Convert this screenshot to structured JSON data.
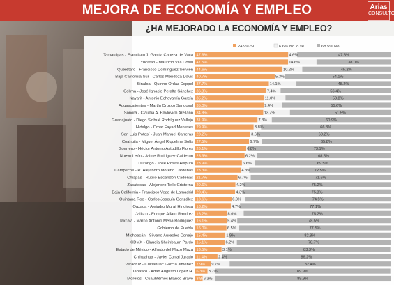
{
  "header": {
    "title": "MEJORA DE ECONOMÍA Y EMPLEO",
    "brand": "Arias",
    "brand_sub": "CONSULTORES"
  },
  "colors": {
    "header_bg": "#c73a2f",
    "yes": "#f0a15e",
    "unsure": "#f1f1f1",
    "no": "#b3b3b3"
  },
  "chart_data": {
    "type": "stacked-bar-horizontal",
    "title": "¿HA MEJORADO LA ECONOMÍA Y EMPLEO?",
    "legend": [
      "24.9% Sí",
      "6.6% No lo sé",
      "68.5% No"
    ],
    "legend_position": "top",
    "xlim": [
      0,
      100
    ],
    "grid": false,
    "series_names": [
      "Sí",
      "No lo sé",
      "No"
    ],
    "rows": [
      {
        "label": "Tamaulipas - Francisco J. García Cabeza de Vaca",
        "values": [
          47.6,
          4.6,
          47.8
        ]
      },
      {
        "label": "Yucatán - Mauricio Vila Dosal",
        "values": [
          47.5,
          14.6,
          38.0
        ]
      },
      {
        "label": "Querétaro - Francisco Domínguez Servién",
        "values": [
          44.6,
          10.2,
          45.2
        ]
      },
      {
        "label": "Baja California Sur - Carlos Mendoza Davis",
        "values": [
          40.7,
          5.3,
          54.1
        ]
      },
      {
        "label": "Sinaloa - Quirino Ordaz Coppel",
        "values": [
          37.7,
          14.1,
          48.2
        ]
      },
      {
        "label": "Colima - José Ignacio Peralta Sánchez",
        "values": [
          36.3,
          7.4,
          56.4
        ]
      },
      {
        "label": "Nayarit - Antonio Echevarría García",
        "values": [
          35.2,
          11.0,
          53.8
        ]
      },
      {
        "label": "Aguascalientes - Martín Orozco Sandoval",
        "values": [
          35.0,
          9.4,
          55.6
        ]
      },
      {
        "label": "Sonora - Claudia A. Pavlovich Arellano",
        "values": [
          34.8,
          13.7,
          51.5
        ]
      },
      {
        "label": "Guanajuato - Diego Sinhué Rodríguez Vallejo",
        "values": [
          31.9,
          7.3,
          60.9
        ]
      },
      {
        "label": "Hidalgo - Omar Fayad Meneses",
        "values": [
          29.9,
          3.8,
          66.3
        ]
      },
      {
        "label": "San Luis Potosí - Juan Manuel Carreras",
        "values": [
          28.2,
          3.6,
          68.2
        ]
      },
      {
        "label": "Coahuila - Miguel Ángel Riquelme Solís",
        "values": [
          27.5,
          6.7,
          65.8
        ]
      },
      {
        "label": "Guerrero - Héctor Antonio Astudillo Flores",
        "values": [
          26.1,
          0.8,
          73.1
        ]
      },
      {
        "label": "Nuevo León - Jaime Rodríguez Calderón",
        "values": [
          25.3,
          6.2,
          68.5
        ]
      },
      {
        "label": "Durango - José Rosas Aispuro",
        "values": [
          23.9,
          6.6,
          69.5
        ]
      },
      {
        "label": "Campeche - R. Alejandro Moreno Cárdenas",
        "values": [
          23.3,
          4.3,
          72.5
        ]
      },
      {
        "label": "Chiapas - Rutilio Escandón Cadenas",
        "values": [
          21.7,
          6.7,
          71.6
        ]
      },
      {
        "label": "Zacatecas - Alejandro Tello Cristerna",
        "values": [
          20.6,
          4.2,
          75.2
        ]
      },
      {
        "label": "Baja California - Francisco Vega de Lamadrid",
        "values": [
          20.4,
          4.3,
          75.3
        ]
      },
      {
        "label": "Quintana Roo - Carlos Joaquín González",
        "values": [
          18.6,
          6.9,
          74.5
        ]
      },
      {
        "label": "Oaxaca - Alejadro Murat Hinojosa",
        "values": [
          18.2,
          4.7,
          77.1
        ]
      },
      {
        "label": "Jalisco - Enrique Alfaro Ramírez",
        "values": [
          16.2,
          8.6,
          75.2
        ]
      },
      {
        "label": "Tlaxcala - Marco Antonio Mena Rodríguez",
        "values": [
          16.1,
          5.4,
          78.5
        ]
      },
      {
        "label": "Gobierno de Puebla",
        "values": [
          16.0,
          6.5,
          77.5
        ]
      },
      {
        "label": "Michoacán - Silvano Aureoles Conejo",
        "values": [
          15.4,
          1.9,
          82.8
        ]
      },
      {
        "label": "CDMX - Claudia Sheinbaum Pardo",
        "values": [
          15.1,
          6.2,
          78.7
        ]
      },
      {
        "label": "Estado de México - Alfredo del Mazo Maza",
        "values": [
          13.5,
          3.1,
          83.3
        ]
      },
      {
        "label": "Chihuahua - Javier Corral Jurado",
        "values": [
          11.4,
          2.4,
          86.2
        ]
      },
      {
        "label": "Veracruz - Cuitláhuac García Jiménez",
        "values": [
          7.9,
          9.7,
          82.4
        ]
      },
      {
        "label": "Tabasco - Adán Augusto López H.",
        "values": [
          6.3,
          3.7,
          89.9
        ]
      },
      {
        "label": "Morelos - Cuauhtémoc Blanco Bravo",
        "values": [
          3.8,
          6.3,
          89.9
        ]
      }
    ]
  }
}
